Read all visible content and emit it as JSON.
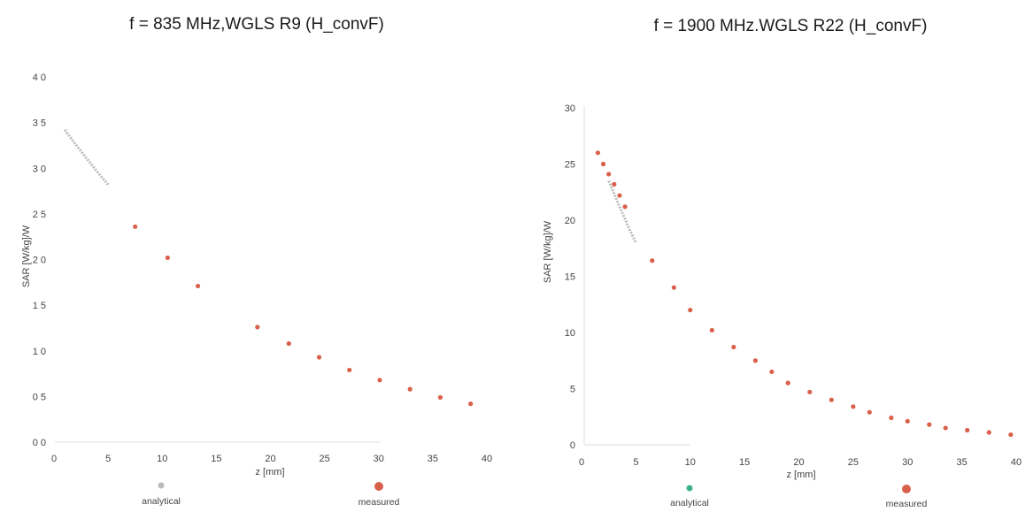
{
  "chart_data": [
    {
      "type": "scatter",
      "title": "f = 835 MHz,WGLS R9 (H_convF)",
      "xlabel": "z [mm]",
      "ylabel": "SAR [W/kg]/W",
      "xlim": [
        0,
        40
      ],
      "ylim": [
        0,
        4.0
      ],
      "xticks": [
        0,
        5,
        10,
        15,
        20,
        25,
        30,
        35,
        40
      ],
      "xtick_labels": [
        "0",
        "5",
        "10",
        "15",
        "20",
        "25",
        "30",
        "35",
        "40"
      ],
      "yticks": [
        0,
        0.5,
        1.0,
        1.5,
        2.0,
        2.5,
        3.0,
        3.5,
        4.0
      ],
      "ytick_labels": [
        "0 0",
        "0 5",
        "1 0",
        "1 5",
        "2 0",
        "2 5",
        "3 0",
        "3 5",
        "4 0"
      ],
      "grid": false,
      "legend_position": "bottom",
      "series": [
        {
          "name": "analytical",
          "kind": "line",
          "color": "#bbbbbb",
          "x": [
            1,
            2,
            3,
            4,
            5
          ],
          "y": [
            3.42,
            3.26,
            3.11,
            2.96,
            2.82
          ]
        },
        {
          "name": "measured",
          "kind": "points",
          "color": "#d9604a",
          "x": [
            7.5,
            10.5,
            13.3,
            18.8,
            21.7,
            24.5,
            27.3,
            30.1,
            32.9,
            35.7,
            38.5
          ],
          "y": [
            2.36,
            2.02,
            1.71,
            1.26,
            1.08,
            0.93,
            0.79,
            0.68,
            0.58,
            0.49,
            0.42
          ]
        }
      ]
    },
    {
      "type": "scatter",
      "title": "f = 1900 MHz.WGLS R22 (H_convF)",
      "xlabel": "z [mm]",
      "ylabel": "SAR [W/kg]/W",
      "xlim": [
        0,
        40
      ],
      "ylim": [
        0,
        30
      ],
      "xticks": [
        0,
        5,
        10,
        15,
        20,
        25,
        30,
        35,
        40
      ],
      "xtick_labels": [
        "0",
        "5",
        "10",
        "15",
        "20",
        "25",
        "30",
        "35",
        "40"
      ],
      "yticks": [
        0,
        5,
        10,
        15,
        20,
        25,
        30
      ],
      "ytick_labels": [
        "0",
        "5",
        "10",
        "15",
        "20",
        "25",
        "30"
      ],
      "grid": false,
      "legend_position": "bottom",
      "series": [
        {
          "name": "analytical",
          "kind": "line",
          "color": "#bbbbbb",
          "x": [
            2.5,
            3.5,
            4.5,
            5.0
          ],
          "y": [
            23.5,
            21.2,
            19.0,
            18.0
          ]
        },
        {
          "name": "measured",
          "kind": "points",
          "color": "#d9604a",
          "x": [
            1.5,
            2.0,
            2.5,
            3.0,
            3.5,
            4.0,
            6.5,
            8.5,
            10.0,
            12.0,
            14.0,
            16.0,
            17.5,
            19.0,
            21.0,
            23.0,
            25.0,
            26.5,
            28.5,
            30.0,
            32.0,
            33.5,
            35.5,
            37.5,
            39.5
          ],
          "y": [
            26.0,
            25.0,
            24.1,
            23.2,
            22.2,
            21.2,
            16.4,
            14.0,
            12.0,
            10.2,
            8.7,
            7.5,
            6.5,
            5.5,
            4.7,
            4.0,
            3.4,
            2.9,
            2.4,
            2.1,
            1.8,
            1.5,
            1.3,
            1.1,
            0.9
          ]
        }
      ]
    }
  ],
  "legends": [
    {
      "items": [
        {
          "label": "analytical",
          "color": "#bbbbbb"
        },
        {
          "label": "measured",
          "color": "#d9604a"
        }
      ]
    },
    {
      "items": [
        {
          "label": "analytical",
          "color": "#3cb08a"
        },
        {
          "label": "measured",
          "color": "#d9604a"
        }
      ]
    }
  ]
}
